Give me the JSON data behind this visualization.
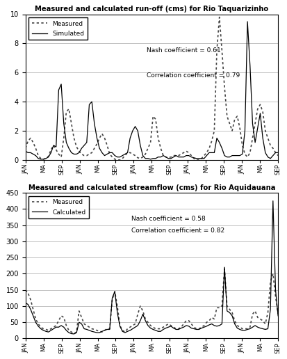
{
  "chart1": {
    "title": "Measured and calculated run-off (cms) for Rio Taquarizinho",
    "ylim": [
      0,
      10
    ],
    "yticks": [
      0,
      2,
      4,
      6,
      8,
      10
    ],
    "nash": "Nash coefficient = 0.61",
    "corr": "Correlation coefficient = 0.79",
    "legend_measured": "Measured",
    "legend_simulated": "Simulated",
    "xtick_labels": [
      "JAN",
      "MA",
      "SEP",
      "JAN",
      "MA",
      "SEP",
      "JAN",
      "MA",
      "SEP",
      "JAN",
      "MA",
      "SEP",
      "JAN",
      "MA",
      "SEP"
    ],
    "measured": [
      0.8,
      1.3,
      1.5,
      1.2,
      0.8,
      0.3,
      0.1,
      0.05,
      0.1,
      0.25,
      0.7,
      1.0,
      0.7,
      0.4,
      0.2,
      1.5,
      3.3,
      3.5,
      2.5,
      1.5,
      0.9,
      0.6,
      0.4,
      0.3,
      0.3,
      0.4,
      0.5,
      0.8,
      1.1,
      1.5,
      1.8,
      1.5,
      1.0,
      0.4,
      0.2,
      0.05,
      0.0,
      0.0,
      0.1,
      0.3,
      0.5,
      0.5,
      0.4,
      0.3,
      0.15,
      0.1,
      0.2,
      0.4,
      0.8,
      1.2,
      3.0,
      2.8,
      1.5,
      0.8,
      0.3,
      0.2,
      0.15,
      0.2,
      0.3,
      0.3,
      0.3,
      0.4,
      0.5,
      0.6,
      0.5,
      0.3,
      0.1,
      0.0,
      0.0,
      0.1,
      0.3,
      0.5,
      0.8,
      1.3,
      2.0,
      7.5,
      9.8,
      7.5,
      5.0,
      3.0,
      2.5,
      2.0,
      2.8,
      3.0,
      2.2,
      1.0,
      0.4,
      0.2,
      0.5,
      1.5,
      2.5,
      3.5,
      3.8,
      3.3,
      2.0,
      1.5,
      1.0,
      0.8,
      0.5,
      0.3
    ],
    "simulated": [
      0.6,
      0.5,
      0.5,
      0.4,
      0.3,
      0.1,
      0.05,
      0.05,
      0.1,
      0.2,
      0.5,
      1.0,
      0.9,
      4.8,
      5.2,
      2.5,
      1.2,
      0.8,
      0.5,
      0.4,
      0.4,
      0.5,
      0.8,
      1.0,
      1.2,
      3.8,
      4.0,
      2.5,
      1.5,
      0.8,
      0.5,
      0.3,
      0.4,
      0.5,
      0.5,
      0.3,
      0.2,
      0.2,
      0.3,
      0.4,
      0.5,
      1.5,
      2.0,
      2.3,
      2.0,
      1.0,
      0.3,
      0.1,
      0.1,
      0.05,
      0.1,
      0.1,
      0.2,
      0.2,
      0.3,
      0.2,
      0.1,
      0.1,
      0.2,
      0.3,
      0.2,
      0.2,
      0.2,
      0.3,
      0.3,
      0.2,
      0.15,
      0.1,
      0.1,
      0.1,
      0.1,
      0.3,
      0.5,
      0.5,
      0.5,
      1.5,
      1.2,
      0.8,
      0.3,
      0.2,
      0.2,
      0.3,
      0.3,
      0.3,
      0.3,
      0.4,
      2.0,
      9.5,
      6.5,
      2.5,
      1.2,
      2.2,
      3.2,
      1.5,
      0.5,
      0.2,
      0.1,
      0.3,
      0.5,
      0.5
    ]
  },
  "chart2": {
    "title": "Measured and calculated streamflow (cms) for Rio Aquidauana",
    "ylim": [
      0,
      450
    ],
    "yticks": [
      0,
      50,
      100,
      150,
      200,
      250,
      300,
      350,
      400,
      450
    ],
    "nash": "Nash coefficient = 0.58",
    "corr": "Correlation coefficient = 0.82",
    "legend_measured": "Measured",
    "legend_calculated": "Calculated",
    "xtick_labels": [
      "JAN",
      "MA",
      "SEP",
      "JAN",
      "MA",
      "SEP",
      "JAN",
      "MA",
      "SEP",
      "JAN",
      "MA",
      "SEP",
      "JAN",
      "MA",
      "SEP"
    ],
    "measured": [
      150,
      140,
      120,
      90,
      60,
      45,
      35,
      30,
      28,
      25,
      30,
      35,
      40,
      55,
      70,
      65,
      40,
      25,
      20,
      15,
      20,
      85,
      65,
      45,
      40,
      35,
      30,
      28,
      25,
      22,
      20,
      25,
      30,
      30,
      120,
      145,
      100,
      40,
      25,
      20,
      30,
      35,
      40,
      45,
      75,
      100,
      85,
      60,
      50,
      40,
      35,
      30,
      30,
      30,
      35,
      40,
      45,
      40,
      35,
      30,
      30,
      35,
      45,
      55,
      55,
      45,
      35,
      30,
      30,
      35,
      40,
      50,
      55,
      65,
      60,
      95,
      95,
      100,
      215,
      100,
      90,
      80,
      55,
      40,
      35,
      30,
      30,
      30,
      35,
      75,
      85,
      65,
      60,
      55,
      45,
      80,
      175,
      200,
      130,
      75
    ],
    "calculated": [
      110,
      105,
      90,
      70,
      50,
      38,
      30,
      25,
      22,
      20,
      25,
      30,
      35,
      35,
      40,
      35,
      25,
      18,
      15,
      14,
      18,
      50,
      45,
      30,
      28,
      25,
      22,
      20,
      18,
      18,
      22,
      25,
      28,
      28,
      125,
      145,
      80,
      38,
      22,
      18,
      22,
      25,
      30,
      35,
      40,
      55,
      75,
      55,
      40,
      32,
      28,
      25,
      22,
      22,
      28,
      32,
      35,
      38,
      32,
      28,
      28,
      32,
      35,
      40,
      38,
      32,
      30,
      28,
      28,
      32,
      35,
      38,
      42,
      45,
      40,
      38,
      40,
      45,
      220,
      85,
      80,
      70,
      45,
      32,
      28,
      25,
      25,
      28,
      30,
      35,
      40,
      35,
      32,
      30,
      28,
      30,
      90,
      425,
      150,
      70
    ]
  },
  "bg_color": "#ffffff",
  "line_color": "#000000",
  "dotted_color": "#444444",
  "grid_color": "#aaaaaa"
}
